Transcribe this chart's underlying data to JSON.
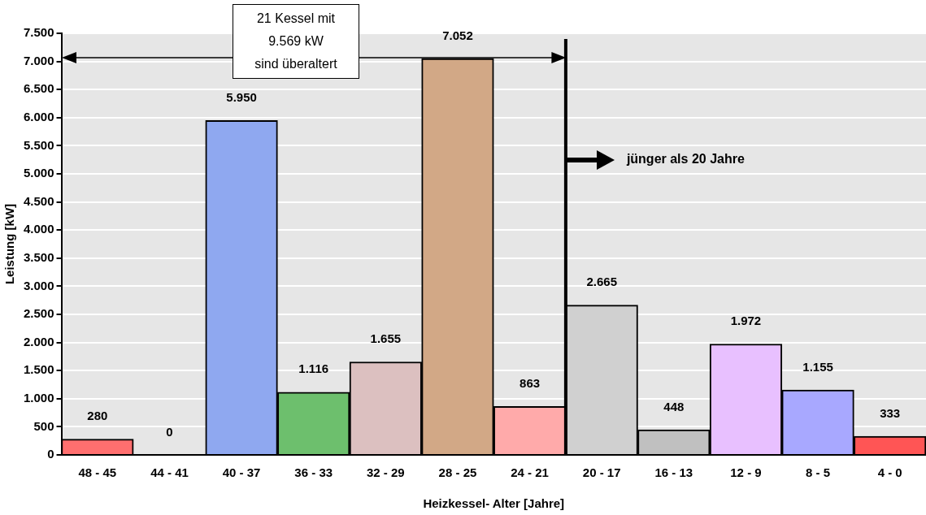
{
  "chart_data": {
    "type": "bar",
    "xlabel": "Heizkessel- Alter [Jahre]",
    "ylabel": "Leistung [kW]",
    "categories": [
      "48 - 45",
      "44 - 41",
      "40 - 37",
      "36 - 33",
      "32 - 29",
      "28 - 25",
      "24 - 21",
      "20 - 17",
      "16 - 13",
      "12 - 9",
      "8 - 5",
      "4 - 0"
    ],
    "values": [
      280,
      0,
      5950,
      1116,
      1655,
      7052,
      863,
      2665,
      448,
      1972,
      1155,
      333
    ],
    "colors": [
      "#ff6f6f",
      "#ffffff",
      "#8fa8f0",
      "#6dbf6d",
      "#dcc0c0",
      "#d2a886",
      "#ffaaaa",
      "#d0d0d0",
      "#c0c0c0",
      "#e8c0ff",
      "#a8a8ff",
      "#ff5555"
    ],
    "value_labels": [
      "280",
      "0",
      "5.950",
      "1.116",
      "1.655",
      "7.052",
      "863",
      "2.665",
      "448",
      "1.972",
      "1.155",
      "333"
    ],
    "ylim": [
      0,
      7500
    ],
    "yticks": [
      {
        "value": 0,
        "label": "0"
      },
      {
        "value": 500,
        "label": "500"
      },
      {
        "value": 1000,
        "label": "1.000"
      },
      {
        "value": 1500,
        "label": "1.500"
      },
      {
        "value": 2000,
        "label": "2.000"
      },
      {
        "value": 2500,
        "label": "2.500"
      },
      {
        "value": 3000,
        "label": "3.000"
      },
      {
        "value": 3500,
        "label": "3.500"
      },
      {
        "value": 4000,
        "label": "4.000"
      },
      {
        "value": 4500,
        "label": "4.500"
      },
      {
        "value": 5000,
        "label": "5.000"
      },
      {
        "value": 5500,
        "label": "5.500"
      },
      {
        "value": 6000,
        "label": "6.000"
      },
      {
        "value": 6500,
        "label": "6.500"
      },
      {
        "value": 7000,
        "label": "7.000"
      },
      {
        "value": 7500,
        "label": "7.500"
      }
    ],
    "grid": "y",
    "legend": false,
    "ref_lines": [
      {
        "axis": "x",
        "value": "20 - 17",
        "color": "#000000"
      }
    ],
    "annotations": [
      "21 Kessel mit\n9.569 kW\nsind überaltert",
      "jünger als 20 Jahre"
    ]
  }
}
